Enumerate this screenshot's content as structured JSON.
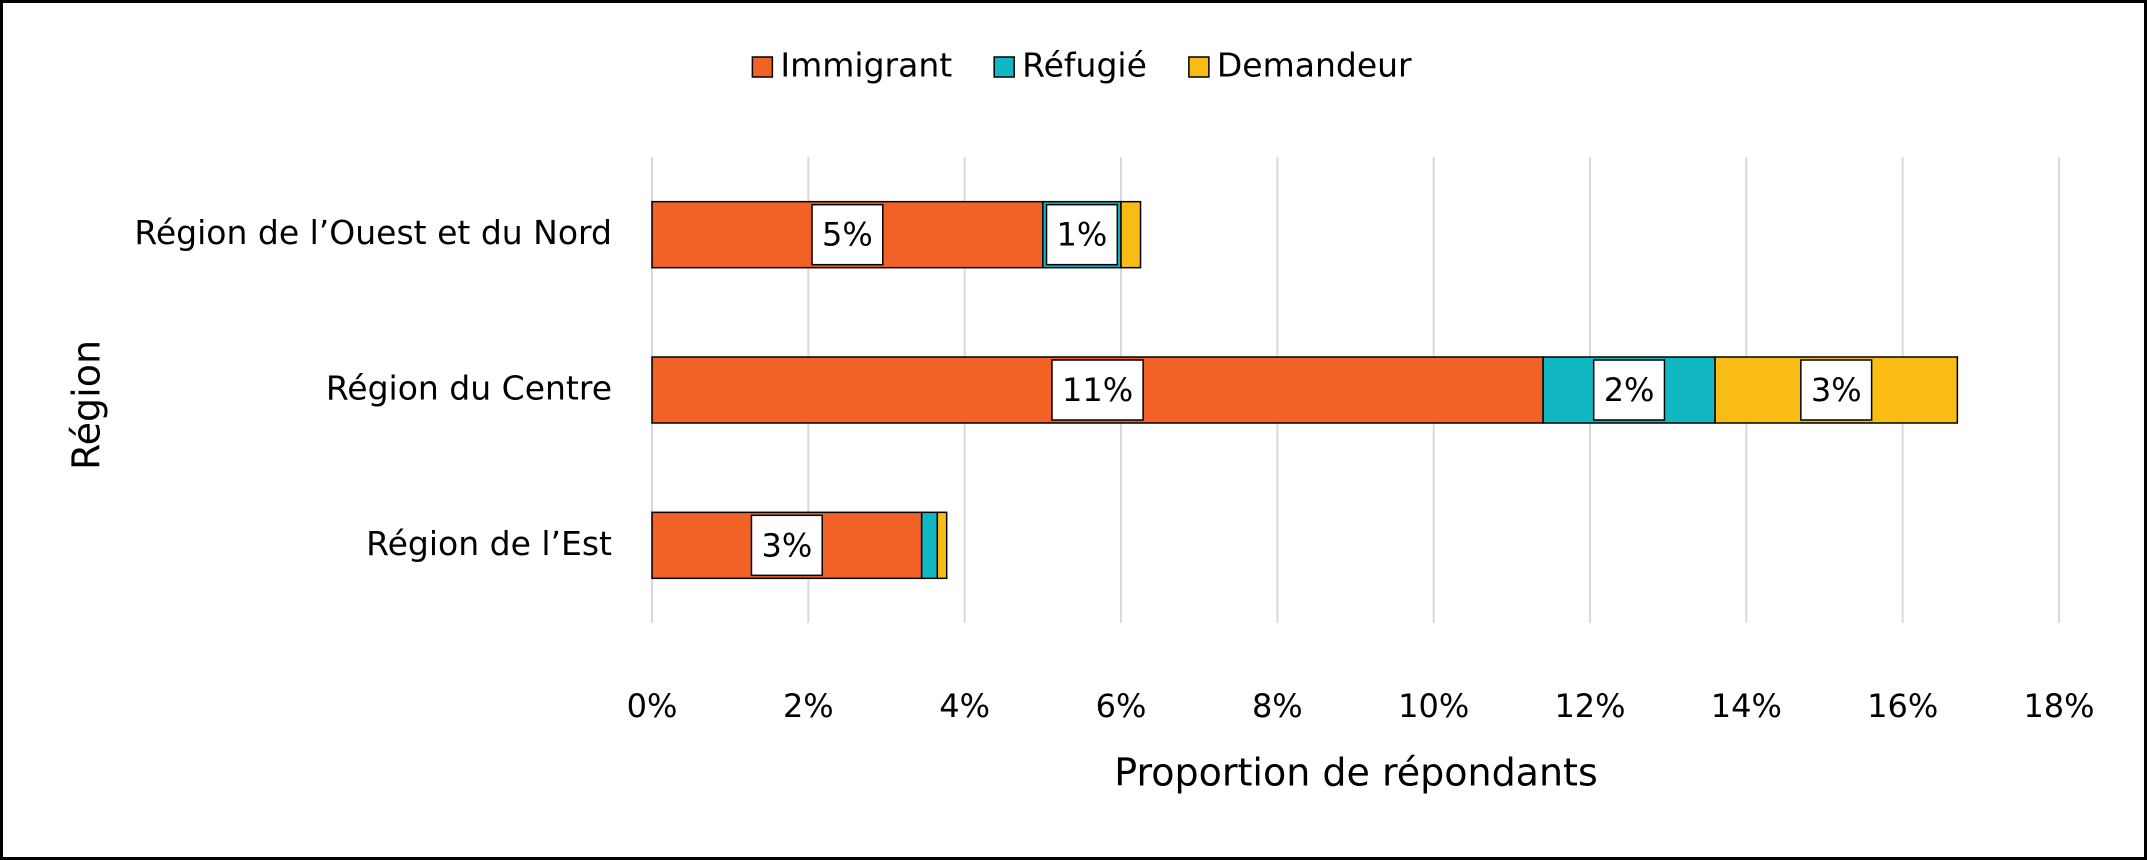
{
  "chart_data": {
    "type": "stacked_barh",
    "categories": [
      "Région de l’Ouest et du Nord",
      "Région du Centre",
      "Région de l’Est"
    ],
    "series": [
      {
        "name": "Immigrant",
        "color": "#f26227",
        "values": [
          5.0,
          11.4,
          3.45
        ],
        "value_labels": [
          "5%",
          "11%",
          "3%"
        ]
      },
      {
        "name": "Réfugié",
        "color": "#12b7c4",
        "values": [
          1.0,
          2.2,
          0.2
        ],
        "value_labels": [
          "1%",
          "2%",
          null
        ]
      },
      {
        "name": "Demandeur",
        "color": "#f9bc15",
        "values": [
          0.25,
          3.1,
          0.12
        ],
        "value_labels": [
          null,
          "3%",
          null
        ]
      }
    ],
    "xlim": [
      0,
      18
    ],
    "xticks": [
      {
        "value": 0,
        "label": "0%"
      },
      {
        "value": 2,
        "label": "2%"
      },
      {
        "value": 4,
        "label": "4%"
      },
      {
        "value": 6,
        "label": "6%"
      },
      {
        "value": 8,
        "label": "8%"
      },
      {
        "value": 10,
        "label": "10%"
      },
      {
        "value": 12,
        "label": "12%"
      },
      {
        "value": 14,
        "label": "14%"
      },
      {
        "value": 16,
        "label": "16%"
      },
      {
        "value": 18,
        "label": "18%"
      }
    ],
    "x_label": "Proportion de répondants",
    "y_label": "Région",
    "grid": true,
    "legend": "top"
  }
}
